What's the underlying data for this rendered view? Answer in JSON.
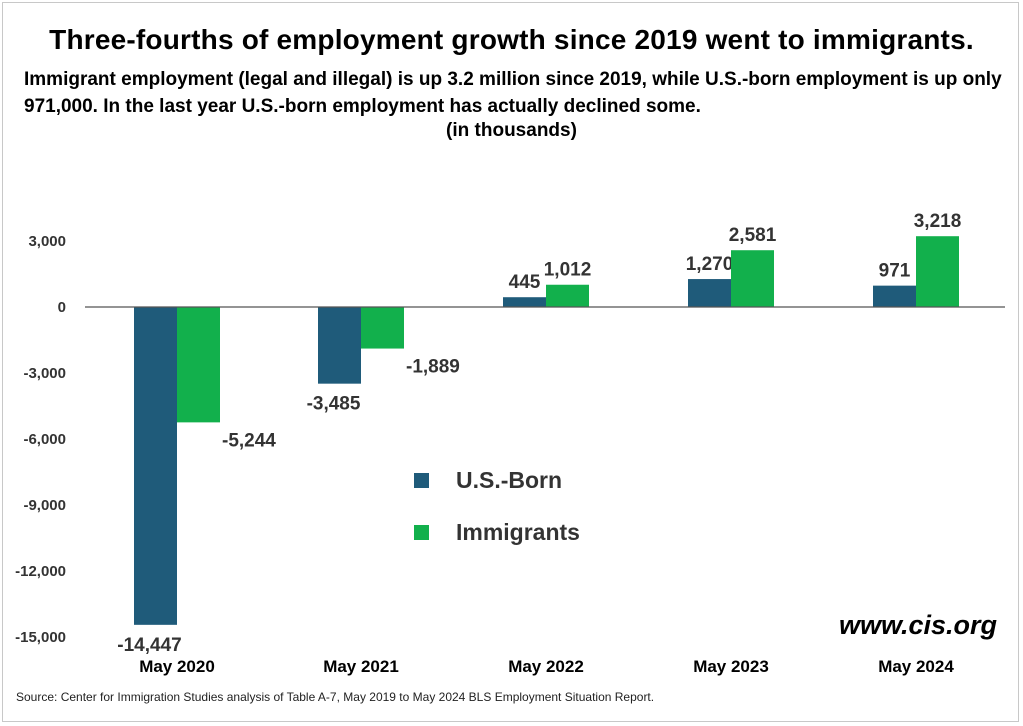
{
  "chart_data": {
    "type": "bar",
    "title": "Three-fourths of employment growth since 2019 went to immigrants.",
    "subtitle": "Immigrant employment (legal and illegal) is up 3.2 million since 2019, while U.S.-born employment is up only 971,000.  In the last year U.S.-born employment has actually declined some.",
    "units_note": "(in thousands)",
    "categories": [
      "May 2020",
      "May 2021",
      "May 2022",
      "May 2023",
      "May 2024"
    ],
    "series": [
      {
        "name": "U.S.-Born",
        "color": "#1f5b7a",
        "values": [
          -14447,
          -3485,
          445,
          1270,
          971
        ]
      },
      {
        "name": "Immigrants",
        "color": "#12b04c",
        "values": [
          -5244,
          -1889,
          1012,
          2581,
          3218
        ]
      }
    ],
    "data_labels": [
      [
        "-14,447",
        "-3,485",
        "445",
        "1,270",
        "971"
      ],
      [
        "-5,244",
        "-1,889",
        "1,012",
        "2,581",
        "3,218"
      ]
    ],
    "y_ticks": [
      3000,
      0,
      -3000,
      -6000,
      -9000,
      -12000,
      -15000
    ],
    "y_tick_labels": [
      "3,000",
      "0",
      "-3,000",
      "-6,000",
      "-9,000",
      "-12,000",
      "-15,000"
    ],
    "ylim": [
      -15000,
      3500
    ],
    "grid": false,
    "legend_position": "center"
  },
  "watermark": "www.cis.org",
  "source": "Source: Center for Immigration Studies analysis of Table A-7, May 2019 to May 2024 BLS Employment Situation Report."
}
